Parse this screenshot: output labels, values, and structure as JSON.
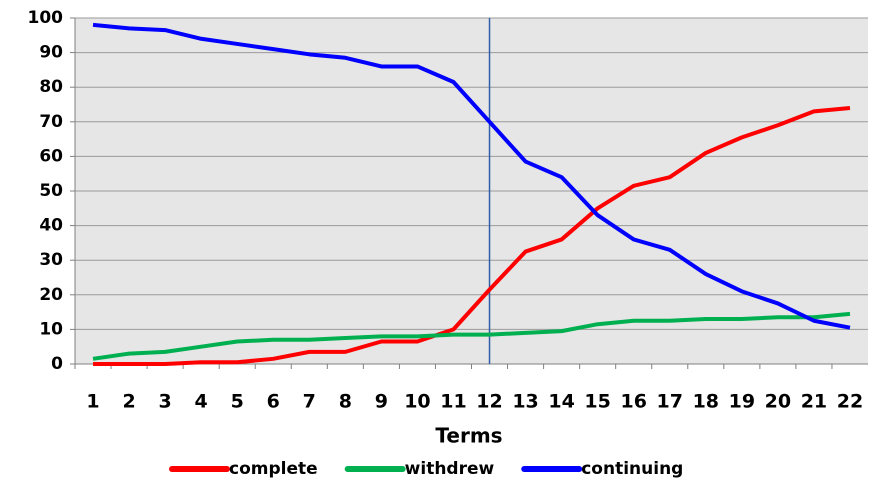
{
  "chart_data": {
    "type": "line",
    "x_label": "Terms",
    "categories": [
      "1",
      "2",
      "3",
      "4",
      "5",
      "6",
      "7",
      "8",
      "9",
      "10",
      "11",
      "12",
      "13",
      "14",
      "15",
      "16",
      "17",
      "18",
      "19",
      "20",
      "21",
      "22"
    ],
    "series": [
      {
        "name": "complete",
        "color": "#ff0000",
        "values": [
          0,
          0,
          0,
          0.5,
          0.5,
          1.5,
          3.5,
          3.5,
          6.5,
          6.5,
          10,
          21.5,
          32.5,
          36,
          45,
          51.5,
          54,
          61,
          65.5,
          69,
          73,
          74
        ]
      },
      {
        "name": "withdrew",
        "color": "#00b050",
        "values": [
          1.5,
          3,
          3.5,
          5,
          6.5,
          7,
          7,
          7.5,
          8,
          8,
          8.5,
          8.5,
          9,
          9.5,
          11.5,
          12.5,
          12.5,
          13,
          13,
          13.5,
          13.5,
          14.5
        ]
      },
      {
        "name": "continuing",
        "color": "#0000ff",
        "values": [
          98,
          97,
          96.5,
          94,
          92.5,
          91,
          89.5,
          88.5,
          86,
          86,
          81.5,
          70,
          58.5,
          54,
          43,
          36,
          33,
          26,
          21,
          17.5,
          12.5,
          10.5
        ]
      }
    ],
    "ylim": [
      0,
      100
    ],
    "yticks": [
      0,
      10,
      20,
      30,
      40,
      50,
      60,
      70,
      80,
      90,
      100
    ],
    "grid": true,
    "marker_category": "12",
    "marker_color": "#2e5ea8",
    "legend": "bottom"
  }
}
